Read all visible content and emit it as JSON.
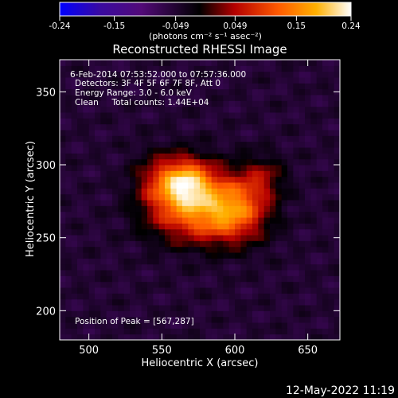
{
  "chart_data": {
    "type": "heatmap",
    "title": "Reconstructed RHESSI Image",
    "xlabel": "Heliocentric X (arcsec)",
    "ylabel": "Heliocentric Y (arcsec)",
    "xlim": [
      480,
      672
    ],
    "ylim": [
      180,
      372
    ],
    "x_ticks": [
      500,
      550,
      600,
      650
    ],
    "y_ticks": [
      200,
      250,
      300,
      350
    ],
    "colorbar": {
      "range": [
        -0.24,
        0.24
      ],
      "tick_values": [
        -0.24,
        -0.15,
        -0.049,
        0.049,
        0.15,
        0.24
      ],
      "tick_labels": [
        "-0.24",
        "-0.15",
        "-0.049",
        "0.049",
        "0.15",
        "0.24"
      ],
      "unit": "(photons cm⁻² s⁻¹ asec⁻²)",
      "colors": [
        "#0000ff",
        "#3a0aa0",
        "#520a78",
        "#000000",
        "#b40000",
        "#ff5a00",
        "#ffb000",
        "#ffffff"
      ]
    },
    "info_lines": [
      "6-Feb-2014 07:53:52.000 to 07:57:36.000",
      "Detectors: 3F 4F 5F 6F 7F 8F, Att 0",
      "Energy Range: 3.0 - 6.0 keV",
      "Clean     Total counts: 1.44E+04"
    ],
    "peak_label": "Position of Peak = [567,287]",
    "peak": {
      "x": 567,
      "y": 287
    },
    "sources": [
      {
        "x": 567,
        "y": 287,
        "sigma_x": 13,
        "sigma_y": 12,
        "amplitude": 0.24
      },
      {
        "x": 600,
        "y": 272,
        "sigma_x": 16,
        "sigma_y": 16,
        "amplitude": 0.17
      },
      {
        "x": 572,
        "y": 264,
        "sigma_x": 22,
        "sigma_y": 13,
        "amplitude": 0.13
      },
      {
        "x": 547,
        "y": 288,
        "sigma_x": 12,
        "sigma_y": 14,
        "amplitude": 0.08
      },
      {
        "x": 620,
        "y": 292,
        "sigma_x": 10,
        "sigma_y": 10,
        "amplitude": 0.06
      }
    ],
    "background_level": -0.05
  },
  "timestamp": "12-May-2022 11:19"
}
